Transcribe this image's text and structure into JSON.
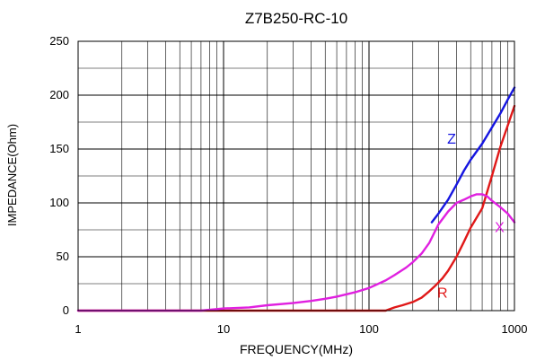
{
  "chart_data": {
    "type": "line",
    "title": "Z7B250-RC-10",
    "xlabel": "FREQUENCY(MHz)",
    "ylabel": "IMPEDANCE(Ohm)",
    "xscale": "log",
    "xlim": [
      1,
      1000
    ],
    "ylim": [
      0,
      250
    ],
    "grid": true,
    "xticks": [
      1,
      10,
      100,
      1000
    ],
    "xtick_labels": [
      "1",
      "10",
      "100",
      "1000"
    ],
    "yticks": [
      0,
      50,
      100,
      150,
      200,
      250
    ],
    "ytick_labels": [
      "0",
      "50",
      "100",
      "150",
      "200",
      "250"
    ],
    "series": [
      {
        "name": "Z",
        "color": "#1515e0",
        "x": [
          270,
          300,
          350,
          400,
          450,
          500,
          600,
          700,
          800,
          900,
          1000
        ],
        "y": [
          82,
          90,
          103,
          117,
          130,
          140,
          155,
          170,
          183,
          196,
          207
        ]
      },
      {
        "name": "R",
        "color": "#e01818",
        "x": [
          1,
          50,
          130,
          150,
          170,
          200,
          230,
          260,
          290,
          320,
          350,
          400,
          450,
          500,
          600,
          700,
          800,
          900,
          1000
        ],
        "y": [
          0,
          0,
          0,
          3,
          5,
          8,
          12,
          18,
          24,
          30,
          37,
          50,
          64,
          77,
          95,
          125,
          152,
          172,
          190
        ]
      },
      {
        "name": "X",
        "color": "#e020e0",
        "x": [
          1,
          7,
          10,
          15,
          20,
          30,
          40,
          50,
          60,
          80,
          100,
          130,
          150,
          180,
          200,
          230,
          260,
          300,
          350,
          400,
          450,
          500,
          550,
          600,
          650,
          700,
          800,
          900,
          1000
        ],
        "y": [
          0,
          0,
          2,
          3,
          5,
          7,
          9,
          11,
          13,
          17,
          21,
          28,
          33,
          40,
          45,
          53,
          63,
          80,
          92,
          100,
          103,
          106,
          108,
          108,
          106,
          102,
          96,
          90,
          82
        ]
      }
    ],
    "annotations": [
      {
        "text": "Z",
        "x": 370,
        "y": 155,
        "color": "#1515e0"
      },
      {
        "text": "R",
        "x": 320,
        "y": 12,
        "color": "#e01818"
      },
      {
        "text": "X",
        "x": 790,
        "y": 73,
        "color": "#e020e0"
      }
    ]
  }
}
